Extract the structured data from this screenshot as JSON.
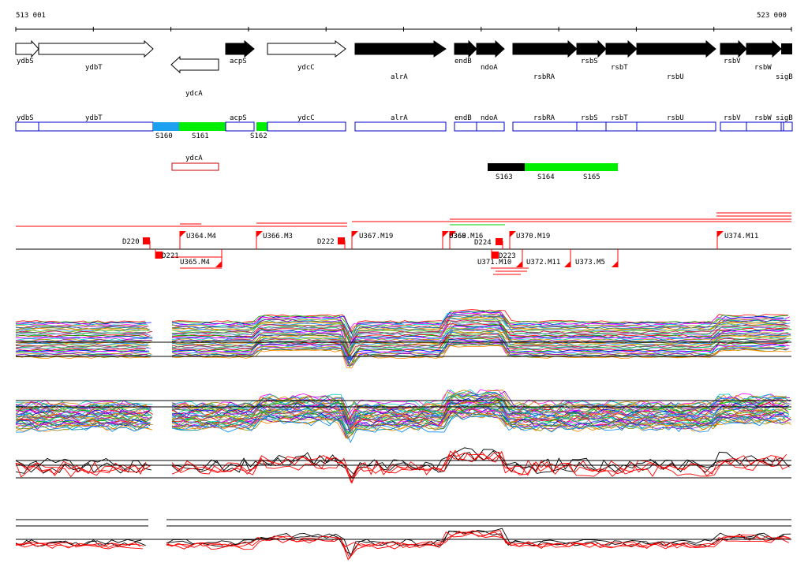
{
  "coords": {
    "start": "513 001",
    "end": "523 000"
  },
  "genes_top": [
    {
      "id": "ydbS",
      "label": "ydbS",
      "strand": "+",
      "fill": "white"
    },
    {
      "id": "ydbT",
      "label": "ydbT",
      "strand": "+",
      "fill": "white"
    },
    {
      "id": "ydcA",
      "label": "ydcA",
      "strand": "-",
      "fill": "white"
    },
    {
      "id": "acpS",
      "label": "acpS",
      "strand": "+",
      "fill": "black"
    },
    {
      "id": "ydcC",
      "label": "ydcC",
      "strand": "+",
      "fill": "white"
    },
    {
      "id": "alrA",
      "label": "alrA",
      "strand": "+",
      "fill": "black"
    },
    {
      "id": "endB",
      "label": "endB",
      "strand": "+",
      "fill": "black"
    },
    {
      "id": "ndoA",
      "label": "ndoA",
      "strand": "+",
      "fill": "black"
    },
    {
      "id": "rsbRA",
      "label": "rsbRA",
      "strand": "+",
      "fill": "black"
    },
    {
      "id": "rsbS",
      "label": "rsbS",
      "strand": "+",
      "fill": "black"
    },
    {
      "id": "rsbT",
      "label": "rsbT",
      "strand": "+",
      "fill": "black"
    },
    {
      "id": "rsbU",
      "label": "rsbU",
      "strand": "+",
      "fill": "black"
    },
    {
      "id": "rsbV",
      "label": "rsbV",
      "strand": "+",
      "fill": "black"
    },
    {
      "id": "rsbW",
      "label": "rsbW",
      "strand": "+",
      "fill": "black"
    },
    {
      "id": "sigB",
      "label": "sigB",
      "strand": "+",
      "fill": "black"
    }
  ],
  "annot_boxes": [
    {
      "id": "ydbS",
      "label": "ydbS"
    },
    {
      "id": "ydbT",
      "label": "ydbT"
    },
    {
      "id": "acpS",
      "label": "acpS"
    },
    {
      "id": "ydcC",
      "label": "ydcC"
    },
    {
      "id": "alrA",
      "label": "alrA"
    },
    {
      "id": "endB",
      "label": "endB"
    },
    {
      "id": "ndoA",
      "label": "ndoA"
    },
    {
      "id": "rsbRA",
      "label": "rsbRA"
    },
    {
      "id": "rsbS",
      "label": "rsbS"
    },
    {
      "id": "rsbT",
      "label": "rsbT"
    },
    {
      "id": "rsbU",
      "label": "rsbU"
    },
    {
      "id": "rsbV",
      "label": "rsbV"
    },
    {
      "id": "rsbW",
      "label": "rsbW"
    },
    {
      "id": "sigB",
      "label": "sigB"
    },
    {
      "id": "ydcA",
      "label": "ydcA"
    }
  ],
  "segments": [
    {
      "id": "S160",
      "label": "S160",
      "color": "#1ea0f0"
    },
    {
      "id": "S161",
      "label": "S161",
      "color": "#00ee00"
    },
    {
      "id": "S162",
      "label": "S162",
      "color": "#00ee00"
    },
    {
      "id": "S163",
      "label": "S163",
      "color": "#000000"
    },
    {
      "id": "S164",
      "label": "S164",
      "color": "#00ee00"
    },
    {
      "id": "S165",
      "label": "S165",
      "color": "#00ee00"
    }
  ],
  "features_above": [
    {
      "id": "D220",
      "label": "D220"
    },
    {
      "id": "U364",
      "label": "U364.M4"
    },
    {
      "id": "U366",
      "label": "U366.M3"
    },
    {
      "id": "D222",
      "label": "D222"
    },
    {
      "id": "U367",
      "label": "U367.M19"
    },
    {
      "id": "U368",
      "label": "U368.M16"
    },
    {
      "id": "U369",
      "label": "U369"
    },
    {
      "id": "D224",
      "label": "D224"
    },
    {
      "id": "U370",
      "label": "U370.M19"
    },
    {
      "id": "U374",
      "label": "U374.M11"
    }
  ],
  "features_below": [
    {
      "id": "D221",
      "label": "D221"
    },
    {
      "id": "U365",
      "label": "U365.M4"
    },
    {
      "id": "D223",
      "label": "D223"
    },
    {
      "id": "U371",
      "label": "U371.M10"
    },
    {
      "id": "U372",
      "label": "U372.M11"
    },
    {
      "id": "U373",
      "label": "U373.M5"
    }
  ],
  "colors": {
    "forward": "#000000",
    "annotation": "#0000cc",
    "feature": "#ff0000",
    "ydcA_box": "#cc0000"
  }
}
